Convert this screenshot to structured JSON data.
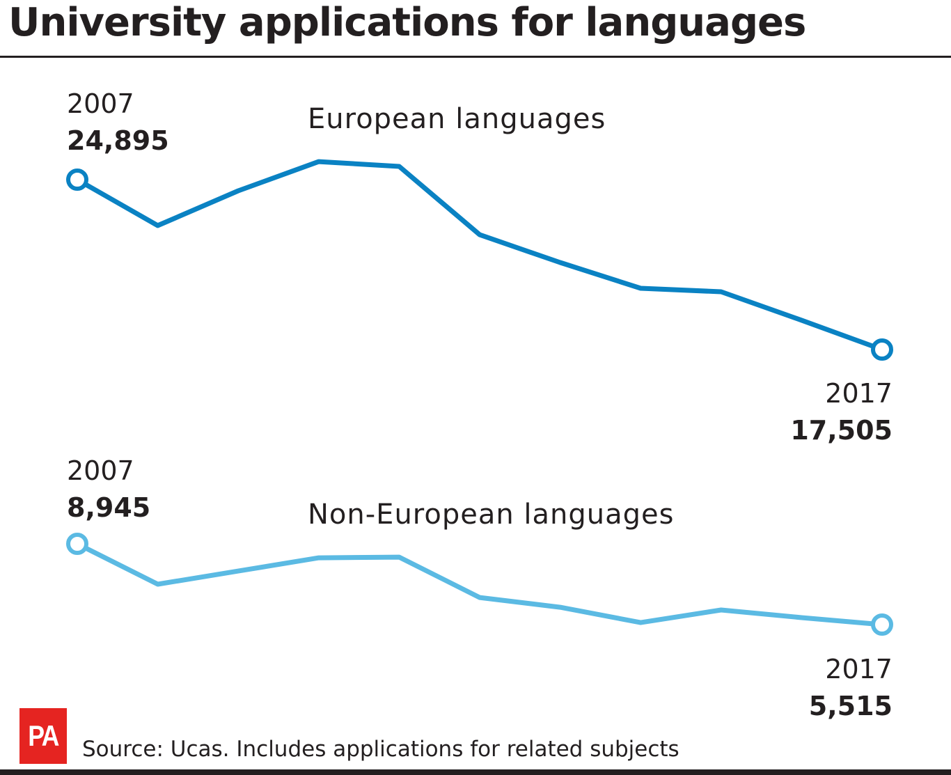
{
  "title": "University applications for languages",
  "source": "Source: Ucas. Includes applications for related subjects",
  "logo": "PA",
  "chart_data": {
    "type": "line",
    "x": [
      2007,
      2008,
      2009,
      2010,
      2011,
      2012,
      2013,
      2014,
      2015,
      2016,
      2017
    ],
    "series": [
      {
        "name": "European languages",
        "color": "#0a82c3",
        "values": [
          24895,
          22900,
          24410,
          25680,
          25470,
          22500,
          21290,
          20170,
          20020,
          18780,
          17505
        ],
        "start_label": {
          "year": "2007",
          "value": "24,895"
        },
        "end_label": {
          "year": "2017",
          "value": "17,505"
        }
      },
      {
        "name": "Non-European languages",
        "color": "#5bbae3",
        "values": [
          8945,
          7230,
          7790,
          8350,
          8380,
          6665,
          6250,
          5600,
          6135,
          5810,
          5515
        ],
        "start_label": {
          "year": "2007",
          "value": "8,945"
        },
        "end_label": {
          "year": "2017",
          "value": "5,515"
        }
      }
    ],
    "grid": false,
    "axes_visible": false
  }
}
